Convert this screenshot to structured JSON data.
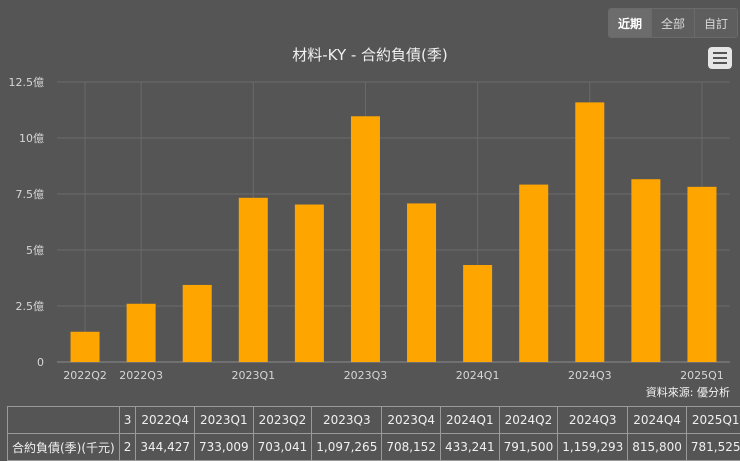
{
  "range_buttons": {
    "recent": "近期",
    "all": "全部",
    "custom": "自訂"
  },
  "title": "材料-KY - 合約負債(季)",
  "source_label": "資料來源: 優分析",
  "chart_data": {
    "type": "bar",
    "title": "材料-KY - 合約負債(季)",
    "categories": [
      "2022Q2",
      "2022Q3",
      "2022Q4",
      "2023Q1",
      "2023Q2",
      "2023Q3",
      "2023Q4",
      "2024Q1",
      "2024Q2",
      "2024Q3",
      "2024Q4",
      "2025Q1"
    ],
    "x_tick_labels": [
      "2022Q2",
      "2022Q3",
      "",
      "2023Q1",
      "",
      "2023Q3",
      "",
      "2024Q1",
      "",
      "2024Q3",
      "",
      "2025Q1"
    ],
    "values": [
      1.35,
      2.6,
      3.44,
      7.33,
      7.03,
      10.97,
      7.08,
      4.33,
      7.92,
      11.59,
      8.16,
      7.82
    ],
    "unit": "億",
    "ylim": [
      0,
      12.5
    ],
    "yticks": [
      "0",
      "2.5億",
      "5億",
      "7.5億",
      "10億",
      "12.5億"
    ],
    "bar_color": "#ffa500",
    "grid": true
  },
  "table": {
    "header": [
      "",
      "3",
      "2022Q4",
      "2023Q1",
      "2023Q2",
      "2023Q3",
      "2023Q4",
      "2024Q1",
      "2024Q2",
      "2024Q3",
      "2024Q4",
      "2025Q1"
    ],
    "row": [
      "合約負債(季)(千元)",
      "2",
      "344,427",
      "733,009",
      "703,041",
      "1,097,265",
      "708,152",
      "433,241",
      "791,500",
      "1,159,293",
      "815,800",
      "781,525"
    ]
  }
}
